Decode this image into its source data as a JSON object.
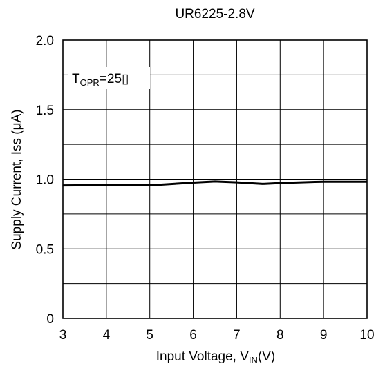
{
  "chart_data": {
    "type": "line",
    "title": "UR6225-2.8V",
    "xlabel": {
      "main": "Input Voltage, V",
      "sub": "IN",
      "tail": "(V)"
    },
    "ylabel": "Supply Current, Iss (μA)",
    "xlim": [
      3,
      10
    ],
    "ylim": [
      0,
      2.0
    ],
    "xticks": [
      3,
      4,
      5,
      6,
      7,
      8,
      9,
      10
    ],
    "yticks": [
      0,
      0.5,
      1.0,
      1.5,
      2.0
    ],
    "ytick_labels": [
      "0",
      "0.5",
      "1.0",
      "1.5",
      "2.0"
    ],
    "grid": true,
    "grid_y_step": 0.25,
    "annotation": {
      "main": "T",
      "sub": "OPR",
      "tail": "=25"
    },
    "series": [
      {
        "x": [
          3.0,
          4.0,
          5.2,
          6.0,
          6.5,
          7.0,
          7.6,
          8.0,
          8.8,
          9.0,
          10.0
        ],
        "y": [
          0.955,
          0.957,
          0.959,
          0.975,
          0.983,
          0.977,
          0.966,
          0.972,
          0.98,
          0.981,
          0.981
        ],
        "color": "#000000"
      }
    ]
  }
}
